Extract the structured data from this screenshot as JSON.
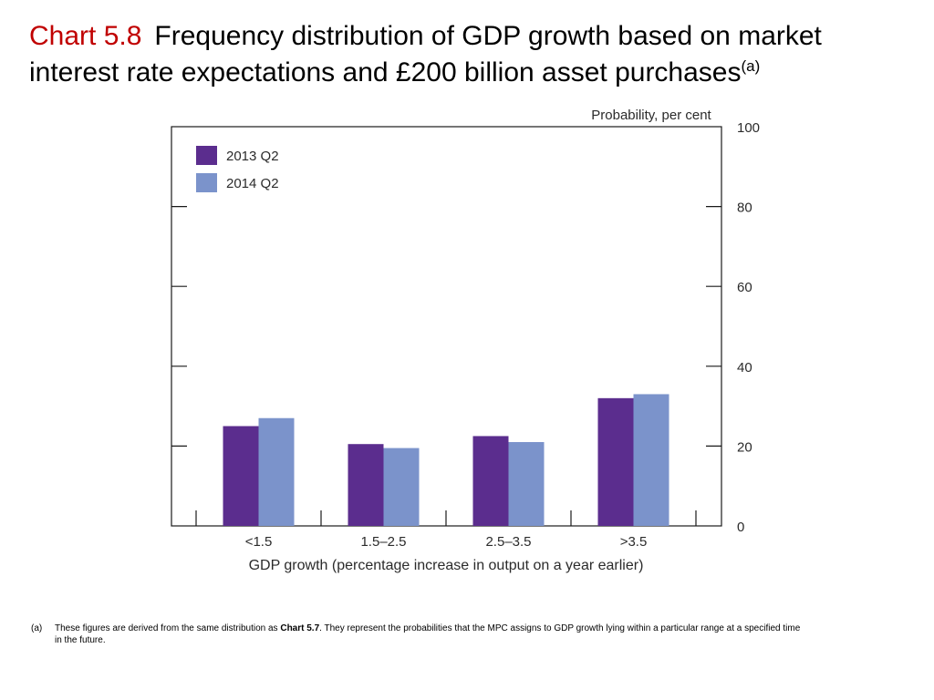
{
  "title": {
    "label": "Chart 5.8",
    "text": "Frequency distribution of GDP growth based on market interest rate expectations and £200 billion asset purchases",
    "superscript": "(a)"
  },
  "chart_data": {
    "type": "bar",
    "ylabel": "Probability, per cent",
    "xlabel": "GDP growth (percentage increase in output on a year earlier)",
    "categories": [
      "<1.5",
      "1.5–2.5",
      "2.5–3.5",
      ">3.5"
    ],
    "series": [
      {
        "name": "2013 Q2",
        "color": "#5b2d8e",
        "values": [
          25,
          20.5,
          22.5,
          32
        ]
      },
      {
        "name": "2014 Q2",
        "color": "#7b93cb",
        "values": [
          27,
          19.5,
          21,
          33
        ]
      }
    ],
    "ylim": [
      0,
      100
    ],
    "yticks": [
      0,
      20,
      40,
      60,
      80,
      100
    ],
    "legend_position": "top-left",
    "grid": false
  },
  "footnote": {
    "mark": "(a)",
    "text_before": "These figures are derived from the same distribution as ",
    "bold": "Chart 5.7",
    "text_after": ".  They represent the probabilities that the MPC assigns to GDP growth lying within a particular range at a specified time",
    "text_wrap": "in the future."
  }
}
